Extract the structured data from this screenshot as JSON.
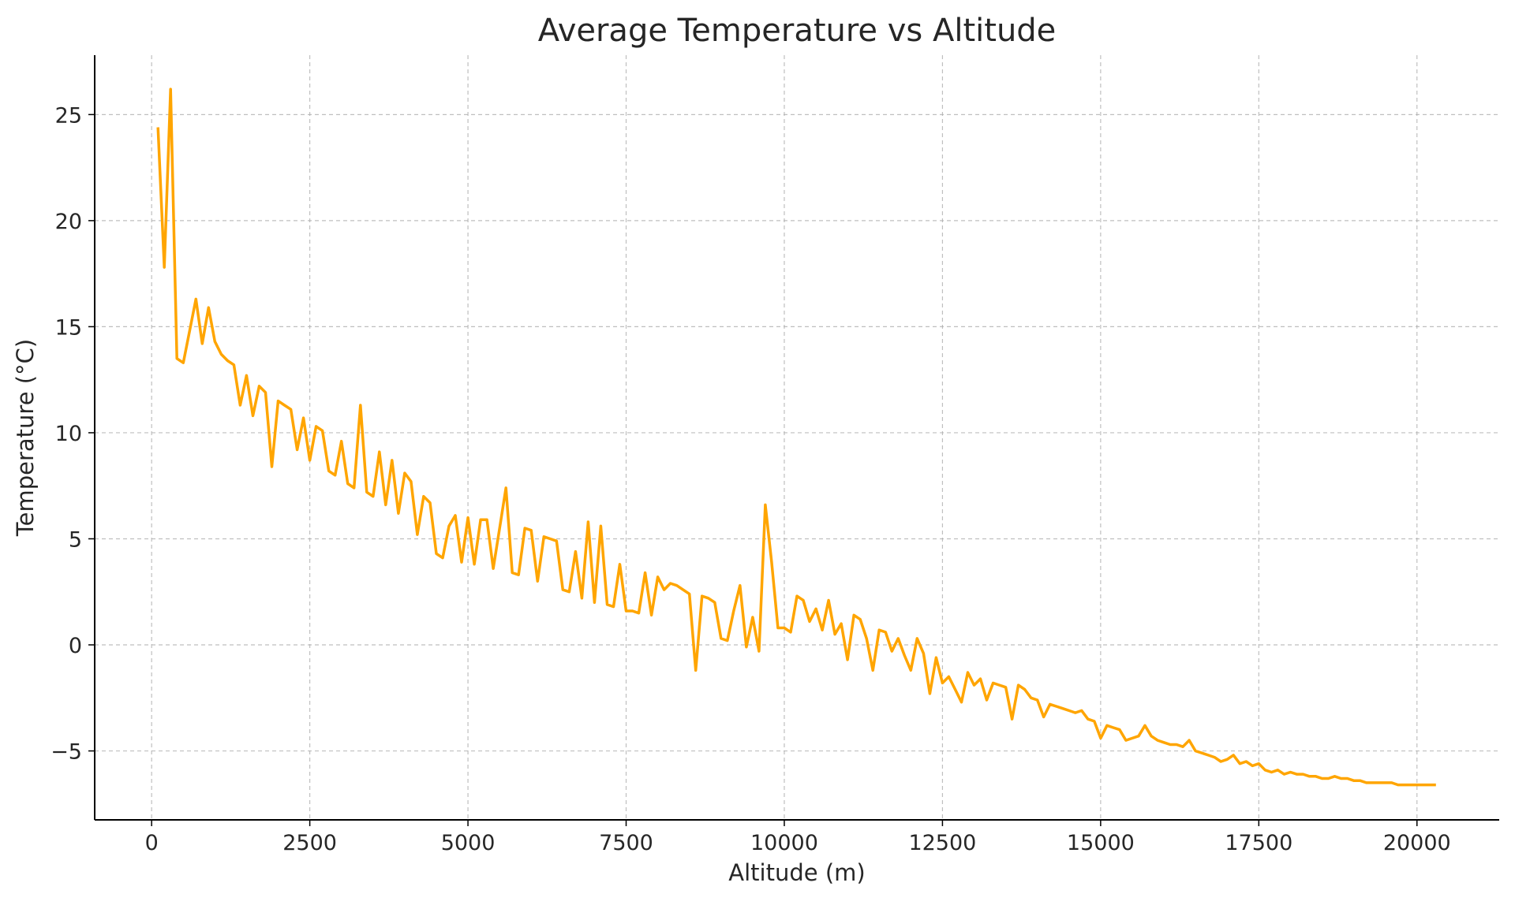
{
  "chart_data": {
    "type": "line",
    "title": "Average Temperature vs Altitude",
    "xlabel": "Altitude (m)",
    "ylabel": "Temperature (°C)",
    "xlim": [
      -900,
      21300
    ],
    "ylim": [
      -8.25,
      27.8
    ],
    "xticks": [
      0,
      2500,
      5000,
      7500,
      10000,
      12500,
      15000,
      17500,
      20000
    ],
    "xtick_labels": [
      "0",
      "2500",
      "5000",
      "7500",
      "10000",
      "12500",
      "15000",
      "17500",
      "20000"
    ],
    "yticks": [
      -5,
      0,
      5,
      10,
      15,
      20,
      25
    ],
    "ytick_labels": [
      "−5",
      "0",
      "5",
      "10",
      "15",
      "20",
      "25"
    ],
    "grid": true,
    "color": "#FFA500",
    "x_start": 100,
    "x_step": 100,
    "series": [
      {
        "name": "Average Temperature",
        "values": [
          24.4,
          17.8,
          26.2,
          13.5,
          13.3,
          14.8,
          16.3,
          14.2,
          15.9,
          14.3,
          13.7,
          13.4,
          13.2,
          11.3,
          12.7,
          10.8,
          12.2,
          11.9,
          8.4,
          11.5,
          11.3,
          11.1,
          9.2,
          10.7,
          8.7,
          10.3,
          10.1,
          8.2,
          8.0,
          9.6,
          7.6,
          7.4,
          11.3,
          7.2,
          7.0,
          9.1,
          6.6,
          8.7,
          6.2,
          8.1,
          7.7,
          5.2,
          7.0,
          6.7,
          4.3,
          4.1,
          5.6,
          6.1,
          3.9,
          6.0,
          3.8,
          5.9,
          5.9,
          3.6,
          5.5,
          7.4,
          3.4,
          3.3,
          5.5,
          5.4,
          3.0,
          5.1,
          5.0,
          4.9,
          2.6,
          2.5,
          4.4,
          2.2,
          5.8,
          2.0,
          5.6,
          1.9,
          1.8,
          3.8,
          1.6,
          1.6,
          1.5,
          3.4,
          1.4,
          3.2,
          2.6,
          2.9,
          2.8,
          2.6,
          2.4,
          -1.2,
          2.3,
          2.2,
          2.0,
          0.3,
          0.2,
          1.6,
          2.8,
          -0.1,
          1.3,
          -0.3,
          6.6,
          3.9,
          0.8,
          0.8,
          0.6,
          2.3,
          2.1,
          1.1,
          1.7,
          0.7,
          2.1,
          0.5,
          1.0,
          -0.7,
          1.4,
          1.2,
          0.3,
          -1.2,
          0.7,
          0.6,
          -0.3,
          0.3,
          -0.5,
          -1.2,
          0.3,
          -0.4,
          -2.3,
          -0.6,
          -1.8,
          -1.5,
          -2.1,
          -2.7,
          -1.3,
          -1.9,
          -1.6,
          -2.6,
          -1.8,
          -1.9,
          -2.0,
          -3.5,
          -1.9,
          -2.1,
          -2.5,
          -2.6,
          -3.4,
          -2.8,
          -2.9,
          -3.0,
          -3.1,
          -3.2,
          -3.1,
          -3.5,
          -3.6,
          -4.4,
          -3.8,
          -3.9,
          -4.0,
          -4.5,
          -4.4,
          -4.3,
          -3.8,
          -4.3,
          -4.5,
          -4.6,
          -4.7,
          -4.7,
          -4.8,
          -4.5,
          -5.0,
          -5.1,
          -5.2,
          -5.3,
          -5.5,
          -5.4,
          -5.2,
          -5.6,
          -5.5,
          -5.7,
          -5.6,
          -5.9,
          -6.0,
          -5.9,
          -6.1,
          -6.0,
          -6.1,
          -6.1,
          -6.2,
          -6.2,
          -6.3,
          -6.3,
          -6.2,
          -6.3,
          -6.3,
          -6.4,
          -6.4,
          -6.5,
          -6.5,
          -6.5,
          -6.5,
          -6.5,
          -6.6,
          -6.6,
          -6.6,
          -6.6,
          -6.6,
          -6.6,
          -6.6
        ]
      }
    ]
  }
}
